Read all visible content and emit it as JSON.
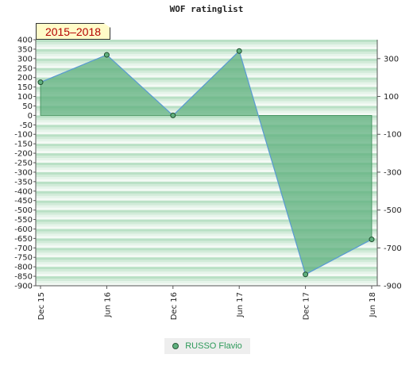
{
  "chart_data": {
    "type": "area",
    "title": "WOF ratinglist",
    "period_label": "2015–2018",
    "categories": [
      "Dec 15",
      "Jun 16",
      "Dec 16",
      "Jun 17",
      "Dec 17",
      "Jun 18"
    ],
    "series": [
      {
        "name": "RUSSO Flavio",
        "values": [
          175,
          320,
          0,
          340,
          -840,
          -655
        ]
      }
    ],
    "ylim": [
      -900,
      400
    ],
    "left_ticks": [
      "400",
      "350",
      "300",
      "250",
      "200",
      "150",
      "100",
      "50",
      "0",
      "-50",
      "-100",
      "-150",
      "-200",
      "-250",
      "-300",
      "-350",
      "-400",
      "-450",
      "-500",
      "-550",
      "-600",
      "-650",
      "-700",
      "-750",
      "-800",
      "-850",
      "-900"
    ],
    "right_ticks": [
      "300",
      "100",
      "-100",
      "-300",
      "-500",
      "-700",
      "-900"
    ],
    "grid": true,
    "legend": "bottom-center",
    "colors": {
      "fill": "#5fb07e",
      "line": "#5b9bd5",
      "marker": "#5fb07e",
      "band_dark": "#b7dfc3",
      "band_light": "#eef7f0"
    }
  }
}
